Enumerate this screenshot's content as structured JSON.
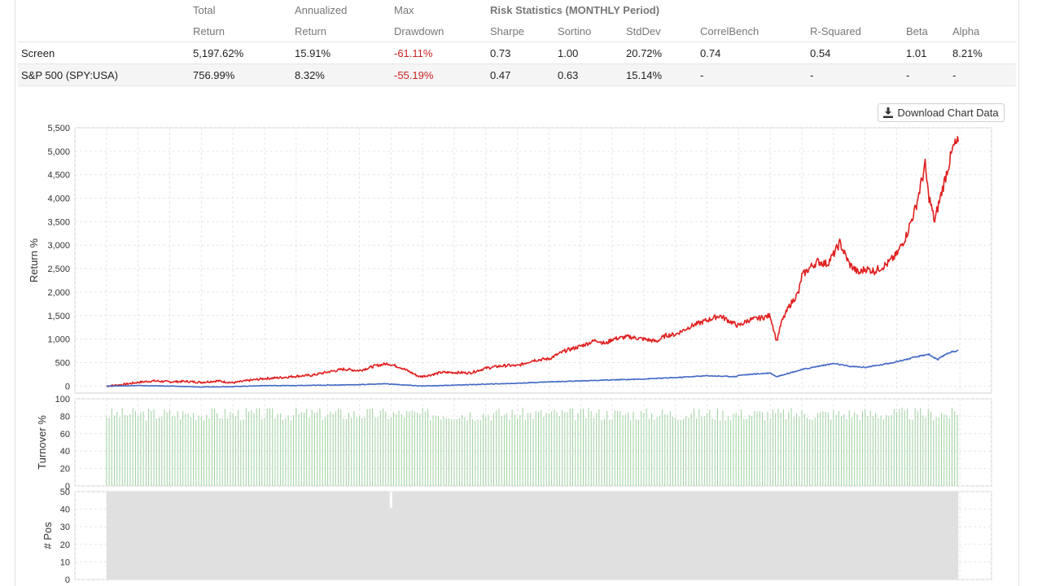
{
  "stats_table": {
    "header_row1": [
      "",
      "Total",
      "Annualized",
      "Max",
      "Risk Statistics (MONTHLY Period)",
      "",
      "",
      "",
      "",
      "",
      ""
    ],
    "header_row2": [
      "",
      "Return",
      "Return",
      "Drawdown",
      "Sharpe",
      "Sortino",
      "StdDev",
      "CorrelBench",
      "R-Squared",
      "Beta",
      "Alpha"
    ],
    "rows": [
      {
        "name": "Screen",
        "total_return": "5,197.62%",
        "annualized_return": "15.91%",
        "max_drawdown": "-61.11%",
        "sharpe": "0.73",
        "sortino": "1.00",
        "stddev": "20.72%",
        "correlbench": "0.74",
        "r_squared": "0.54",
        "beta": "1.01",
        "alpha": "8.21%"
      },
      {
        "name": "S&P 500 (SPY:USA)",
        "total_return": "756.99%",
        "annualized_return": "8.32%",
        "max_drawdown": "-55.19%",
        "sharpe": "0.47",
        "sortino": "0.63",
        "stddev": "15.14%",
        "correlbench": "-",
        "r_squared": "-",
        "beta": "-",
        "alpha": "-"
      }
    ]
  },
  "download_button": {
    "label": "Download Chart Data",
    "icon": "download-icon"
  },
  "colors": {
    "screen": "#e02020",
    "benchmark": "#4169c4",
    "turnover": "#9ed09e",
    "positions": "#e0e0e0",
    "grid": "#e6e6e6"
  },
  "chart_data": [
    {
      "type": "line",
      "ylabel": "Return %",
      "ylim": [
        -150,
        5500
      ],
      "yticks": [
        0,
        500,
        1000,
        1500,
        2000,
        2500,
        3000,
        3500,
        4000,
        4500,
        5000,
        5500
      ],
      "ytick_labels": [
        "0",
        "500",
        "1,000",
        "1,500",
        "2,000",
        "2,500",
        "3,000",
        "3,500",
        "4,000",
        "4,500",
        "5,000",
        "5,500"
      ],
      "xlim": [
        1998,
        2027
      ],
      "grid": true,
      "series": [
        {
          "color": "#e02020",
          "x": [
            1999.0,
            1999.5,
            2000.0,
            2000.5,
            2001.0,
            2001.5,
            2002.0,
            2002.5,
            2003.0,
            2003.5,
            2004.0,
            2004.5,
            2005.0,
            2005.5,
            2006.0,
            2006.5,
            2007.0,
            2007.5,
            2007.9,
            2008.3,
            2008.6,
            2008.9,
            2009.2,
            2009.6,
            2010.0,
            2010.5,
            2011.0,
            2011.4,
            2011.7,
            2012.0,
            2012.5,
            2013.0,
            2013.5,
            2014.0,
            2014.5,
            2014.8,
            2015.0,
            2015.5,
            2016.0,
            2016.4,
            2016.7,
            2017.0,
            2017.5,
            2018.0,
            2018.4,
            2018.8,
            2019.0,
            2019.3,
            2019.7,
            2020.0,
            2020.15,
            2020.2,
            2020.35,
            2020.6,
            2020.9,
            2021.0,
            2021.3,
            2021.5,
            2021.8,
            2022.0,
            2022.2,
            2022.5,
            2022.8,
            2023.0,
            2023.3,
            2023.7,
            2024.0,
            2024.3,
            2024.6,
            2024.9,
            2025.0,
            2025.2,
            2025.3,
            2025.6,
            2025.8,
            2025.95
          ],
          "y": [
            0,
            30,
            80,
            110,
            90,
            100,
            80,
            110,
            70,
            120,
            160,
            180,
            210,
            230,
            300,
            360,
            330,
            430,
            480,
            400,
            300,
            200,
            230,
            290,
            290,
            280,
            380,
            420,
            440,
            430,
            550,
            580,
            750,
            850,
            980,
            900,
            1000,
            1050,
            1000,
            950,
            1080,
            1100,
            1280,
            1400,
            1500,
            1350,
            1280,
            1400,
            1450,
            1500,
            1100,
            950,
            1350,
            1700,
            2000,
            2350,
            2550,
            2650,
            2600,
            2800,
            3050,
            2600,
            2400,
            2500,
            2450,
            2600,
            2800,
            3200,
            3800,
            4700,
            4100,
            3500,
            3800,
            4600,
            5100,
            5200
          ]
        },
        {
          "color": "#4169c4",
          "x": [
            1999.0,
            2000.0,
            2001.0,
            2002.0,
            2003.0,
            2004.0,
            2005.0,
            2006.0,
            2007.0,
            2007.8,
            2008.5,
            2009.0,
            2009.5,
            2010.0,
            2011.0,
            2012.0,
            2013.0,
            2014.0,
            2015.0,
            2016.0,
            2017.0,
            2018.0,
            2018.9,
            2019.0,
            2020.0,
            2020.2,
            2020.5,
            2021.0,
            2021.5,
            2022.0,
            2022.5,
            2023.0,
            2023.5,
            2024.0,
            2024.5,
            2025.0,
            2025.3,
            2025.6,
            2025.95
          ],
          "y": [
            0,
            10,
            0,
            -20,
            -10,
            10,
            10,
            20,
            30,
            50,
            20,
            0,
            10,
            20,
            40,
            60,
            90,
            110,
            130,
            150,
            180,
            220,
            200,
            230,
            280,
            200,
            260,
            350,
            420,
            480,
            420,
            400,
            450,
            520,
            600,
            680,
            560,
            700,
            760
          ]
        }
      ]
    },
    {
      "type": "bar",
      "ylabel": "Turnover %",
      "ylim": [
        0,
        100
      ],
      "yticks": [
        0,
        20,
        40,
        60,
        80,
        100
      ],
      "xlim": [
        1998,
        2027
      ],
      "x_start": 1999.0,
      "x_end": 2025.95,
      "typical_value": 85,
      "grid": true
    },
    {
      "type": "area",
      "ylabel": "# Pos",
      "ylim": [
        0,
        50
      ],
      "yticks": [
        0,
        10,
        20,
        30,
        40,
        50
      ],
      "xlim": [
        1998,
        2027
      ],
      "x_start": 1999.0,
      "x_end": 2025.95,
      "value": 50,
      "gap_x": 2008.0,
      "grid": true
    }
  ]
}
